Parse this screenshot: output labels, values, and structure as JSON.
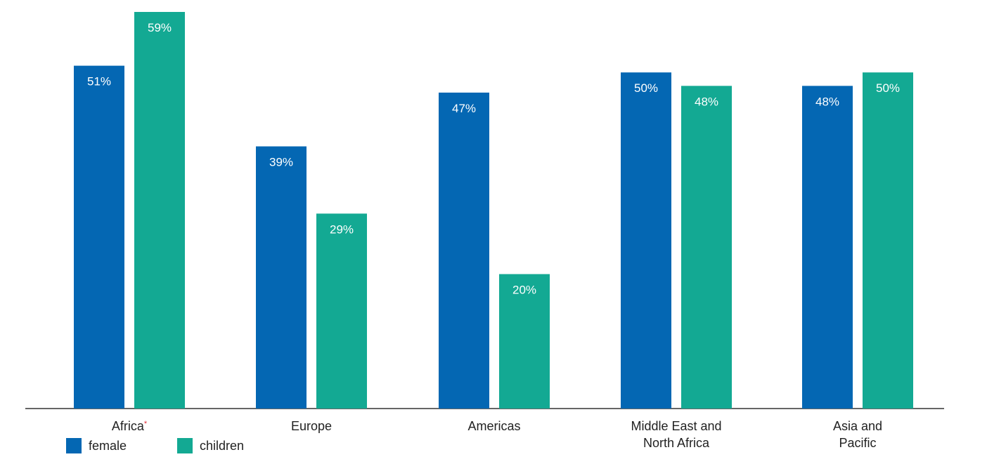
{
  "colors": {
    "female": "#0467b3",
    "children": "#13a993",
    "axis": "#333333",
    "asterisk": "#e0303a"
  },
  "legend": {
    "female_label": "female",
    "children_label": "children"
  },
  "chart_data": {
    "type": "bar",
    "categories": [
      "Africa",
      "Europe",
      "Americas",
      "Middle East and North Africa",
      "Asia and Pacific"
    ],
    "category_lines": [
      [
        "Africa"
      ],
      [
        "Europe"
      ],
      [
        "Americas"
      ],
      [
        "Middle East and",
        "North Africa"
      ],
      [
        "Asia and",
        "Pacific"
      ]
    ],
    "category_notes": [
      "*",
      "",
      "",
      "",
      ""
    ],
    "series": [
      {
        "name": "female",
        "values": [
          51,
          39,
          47,
          50,
          48
        ],
        "labels": [
          "51%",
          "39%",
          "47%",
          "50%",
          "48%"
        ]
      },
      {
        "name": "children",
        "values": [
          59,
          29,
          20,
          48,
          50
        ],
        "labels": [
          "59%",
          "29%",
          "20%",
          "48%",
          "50%"
        ]
      }
    ],
    "value_unit": "%",
    "ylim": [
      0,
      59
    ],
    "grid": false,
    "legend_position": "bottom-left"
  }
}
